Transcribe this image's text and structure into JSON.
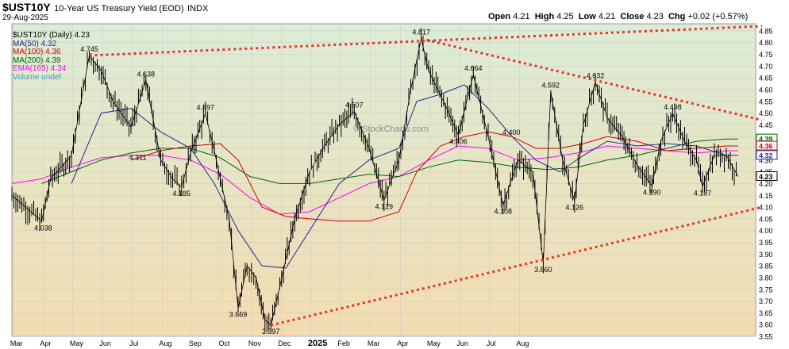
{
  "header": {
    "symbol": "$UST10Y",
    "description": "10-Year US Treasury Yield (EOD)",
    "exchange": "INDX",
    "date": "29-Aug-2025",
    "quote": {
      "open_label": "Open",
      "open": "4.21",
      "high_label": "High",
      "high": "4.25",
      "low_label": "Low",
      "low": "4.21",
      "close_label": "Close",
      "close": "4.23",
      "chg_label": "Chg",
      "chg": "+0.02 (+0.57%)"
    }
  },
  "legend": [
    {
      "text": "$UST10Y (Daily) 4.23",
      "color": "#000000"
    },
    {
      "text": "MA(50) 4.32",
      "color": "#1f2a8c"
    },
    {
      "text": "MA(100) 4.36",
      "color": "#cc0000"
    },
    {
      "text": "MA(200) 4.39",
      "color": "#006400"
    },
    {
      "text": "EMA(165) 4.34",
      "color": "#ff00ff"
    },
    {
      "text": "Volume undef",
      "color": "#40a0c0"
    }
  ],
  "watermark": "© StockCharts.com",
  "colors": {
    "ma50": "#1f2a8c",
    "ma100": "#cc0000",
    "ma200": "#006400",
    "ema165": "#ff00ff",
    "trendline": "#e8322a",
    "bg_top": "#dcecd6",
    "bg_bottom": "#f3dcb0"
  },
  "chart_data": {
    "type": "line",
    "x_months": [
      "Mar",
      "Apr",
      "May",
      "Jun",
      "Jul",
      "Aug",
      "Sep",
      "Oct",
      "Nov",
      "Dec",
      "2025",
      "Feb",
      "Mar",
      "Apr",
      "May",
      "Jun",
      "Jul",
      "Aug"
    ],
    "yticks": [
      "3.55",
      "3.60",
      "3.65",
      "3.70",
      "3.75",
      "3.80",
      "3.85",
      "3.90",
      "3.95",
      "4.00",
      "4.05",
      "4.10",
      "4.15",
      "4.20",
      "4.25",
      "4.30",
      "4.35",
      "4.40",
      "4.45",
      "4.50",
      "4.55",
      "4.60",
      "4.65",
      "4.70",
      "4.75",
      "4.80",
      "4.85"
    ],
    "ylim": [
      3.55,
      4.88
    ],
    "price_series": [
      [
        0,
        4.15
      ],
      [
        1,
        4.04
      ],
      [
        1.3,
        4.22
      ],
      [
        2,
        4.32
      ],
      [
        2.6,
        4.745
      ],
      [
        3,
        4.68
      ],
      [
        3.4,
        4.55
      ],
      [
        4,
        4.44
      ],
      [
        4.5,
        4.64
      ],
      [
        5,
        4.3
      ],
      [
        5.4,
        4.22
      ],
      [
        5.7,
        4.185
      ],
      [
        6,
        4.33
      ],
      [
        6.5,
        4.497
      ],
      [
        6.8,
        4.34
      ],
      [
        7,
        4.22
      ],
      [
        7.3,
        4.05
      ],
      [
        7.6,
        3.669
      ],
      [
        7.9,
        3.85
      ],
      [
        8.2,
        3.8
      ],
      [
        8.5,
        3.62
      ],
      [
        8.7,
        3.597
      ],
      [
        9,
        3.76
      ],
      [
        9.5,
        4.05
      ],
      [
        10,
        4.25
      ],
      [
        10.5,
        4.36
      ],
      [
        11,
        4.45
      ],
      [
        11.5,
        4.507
      ],
      [
        12,
        4.35
      ],
      [
        12.5,
        4.129
      ],
      [
        13,
        4.3
      ],
      [
        13.4,
        4.6
      ],
      [
        13.75,
        4.817
      ],
      [
        14,
        4.68
      ],
      [
        14.5,
        4.55
      ],
      [
        15,
        4.406
      ],
      [
        15.5,
        4.664
      ],
      [
        16,
        4.4
      ],
      [
        16.5,
        4.108
      ],
      [
        17,
        4.3
      ],
      [
        17.5,
        4.25
      ],
      [
        17.85,
        3.86
      ],
      [
        18.1,
        4.592
      ],
      [
        18.5,
        4.3
      ],
      [
        18.9,
        4.126
      ],
      [
        19.2,
        4.45
      ],
      [
        19.6,
        4.632
      ],
      [
        20,
        4.48
      ],
      [
        20.5,
        4.4
      ],
      [
        21,
        4.28
      ],
      [
        21.5,
        4.19
      ],
      [
        21.8,
        4.38
      ],
      [
        22.2,
        4.498
      ],
      [
        22.6,
        4.38
      ],
      [
        23,
        4.3
      ],
      [
        23.2,
        4.187
      ],
      [
        23.6,
        4.32
      ],
      [
        24,
        4.32
      ],
      [
        24.4,
        4.23
      ]
    ],
    "ma50": [
      [
        2,
        4.2
      ],
      [
        3,
        4.5
      ],
      [
        4,
        4.52
      ],
      [
        5,
        4.42
      ],
      [
        6,
        4.35
      ],
      [
        6.8,
        4.2
      ],
      [
        7.6,
        4.0
      ],
      [
        8.4,
        3.85
      ],
      [
        9.2,
        3.84
      ],
      [
        10,
        4.0
      ],
      [
        11,
        4.2
      ],
      [
        12,
        4.3
      ],
      [
        13,
        4.35
      ],
      [
        13.6,
        4.55
      ],
      [
        14.4,
        4.58
      ],
      [
        15.2,
        4.62
      ],
      [
        16,
        4.52
      ],
      [
        16.8,
        4.4
      ],
      [
        17.6,
        4.3
      ],
      [
        18.4,
        4.25
      ],
      [
        19.2,
        4.32
      ],
      [
        20,
        4.38
      ],
      [
        21,
        4.36
      ],
      [
        22,
        4.37
      ],
      [
        23,
        4.36
      ],
      [
        24,
        4.32
      ],
      [
        24.4,
        4.32
      ]
    ],
    "ma100": [
      [
        4,
        4.3
      ],
      [
        5,
        4.34
      ],
      [
        6,
        4.36
      ],
      [
        7,
        4.37
      ],
      [
        7.6,
        4.3
      ],
      [
        8.4,
        4.1
      ],
      [
        9.2,
        4.06
      ],
      [
        10,
        4.05
      ],
      [
        11,
        4.04
      ],
      [
        12,
        4.04
      ],
      [
        13,
        4.08
      ],
      [
        13.6,
        4.25
      ],
      [
        14.4,
        4.36
      ],
      [
        15.2,
        4.4
      ],
      [
        16,
        4.42
      ],
      [
        16.8,
        4.4
      ],
      [
        17.6,
        4.35
      ],
      [
        18.4,
        4.35
      ],
      [
        19.2,
        4.37
      ],
      [
        20,
        4.4
      ],
      [
        21,
        4.38
      ],
      [
        22,
        4.34
      ],
      [
        23,
        4.35
      ],
      [
        24,
        4.36
      ],
      [
        24.4,
        4.36
      ]
    ],
    "ma200": [
      [
        1,
        4.2
      ],
      [
        2,
        4.25
      ],
      [
        3,
        4.3
      ],
      [
        4,
        4.33
      ],
      [
        5,
        4.35
      ],
      [
        6,
        4.35
      ],
      [
        7,
        4.31
      ],
      [
        8,
        4.23
      ],
      [
        9,
        4.2
      ],
      [
        10,
        4.2
      ],
      [
        11,
        4.22
      ],
      [
        12,
        4.24
      ],
      [
        13,
        4.23
      ],
      [
        14,
        4.27
      ],
      [
        15,
        4.3
      ],
      [
        16,
        4.29
      ],
      [
        17,
        4.27
      ],
      [
        18,
        4.26
      ],
      [
        19,
        4.27
      ],
      [
        20,
        4.3
      ],
      [
        21,
        4.32
      ],
      [
        22,
        4.35
      ],
      [
        23,
        4.38
      ],
      [
        24,
        4.39
      ],
      [
        24.4,
        4.39
      ]
    ],
    "ema165": [
      [
        0,
        4.2
      ],
      [
        1,
        4.22
      ],
      [
        2,
        4.27
      ],
      [
        3,
        4.31
      ],
      [
        4,
        4.32
      ],
      [
        5,
        4.32
      ],
      [
        6,
        4.3
      ],
      [
        7,
        4.24
      ],
      [
        8,
        4.14
      ],
      [
        9,
        4.07
      ],
      [
        10,
        4.08
      ],
      [
        11,
        4.14
      ],
      [
        12,
        4.2
      ],
      [
        13,
        4.23
      ],
      [
        14,
        4.3
      ],
      [
        15,
        4.36
      ],
      [
        16,
        4.35
      ],
      [
        17,
        4.3
      ],
      [
        18,
        4.31
      ],
      [
        19,
        4.33
      ],
      [
        20,
        4.36
      ],
      [
        21,
        4.35
      ],
      [
        22,
        4.34
      ],
      [
        23,
        4.33
      ],
      [
        24,
        4.34
      ],
      [
        24.4,
        4.34
      ]
    ],
    "trendlines": [
      {
        "from": [
          2.6,
          4.745
        ],
        "to": [
          25.2,
          4.87
        ]
      },
      {
        "from": [
          13.75,
          4.817
        ],
        "to": [
          25.2,
          4.47
        ]
      },
      {
        "from": [
          8.7,
          3.597
        ],
        "to": [
          25.2,
          4.1
        ]
      }
    ],
    "annotations": [
      {
        "x": 1.05,
        "y": 4.038,
        "text": "4.038",
        "pos": "below"
      },
      {
        "x": 2.6,
        "y": 4.745,
        "text": "4.745",
        "pos": "above"
      },
      {
        "x": 4.5,
        "y": 4.638,
        "text": "4.638",
        "pos": "above"
      },
      {
        "x": 4.6,
        "y": 4.311,
        "text": "4.311",
        "pos": "left"
      },
      {
        "x": 5.7,
        "y": 4.185,
        "text": "4.185",
        "pos": "below"
      },
      {
        "x": 6.5,
        "y": 4.497,
        "text": "4.497",
        "pos": "above"
      },
      {
        "x": 7.6,
        "y": 3.669,
        "text": "3.669",
        "pos": "below"
      },
      {
        "x": 8.7,
        "y": 3.597,
        "text": "3.597",
        "pos": "below"
      },
      {
        "x": 11.5,
        "y": 4.507,
        "text": "4.507",
        "pos": "above"
      },
      {
        "x": 12.5,
        "y": 4.129,
        "text": "4.129",
        "pos": "below"
      },
      {
        "x": 13.75,
        "y": 4.817,
        "text": "4.817",
        "pos": "above"
      },
      {
        "x": 15.5,
        "y": 4.664,
        "text": "4.664",
        "pos": "above"
      },
      {
        "x": 15.0,
        "y": 4.406,
        "text": "4.406",
        "pos": "below"
      },
      {
        "x": 16.4,
        "y": 4.4,
        "text": "4.400",
        "pos": "right"
      },
      {
        "x": 16.5,
        "y": 4.108,
        "text": "4.108",
        "pos": "below"
      },
      {
        "x": 18.1,
        "y": 4.592,
        "text": "4.592",
        "pos": "above"
      },
      {
        "x": 17.85,
        "y": 3.86,
        "text": "3.860",
        "pos": "below"
      },
      {
        "x": 18.9,
        "y": 4.126,
        "text": "4.126",
        "pos": "below"
      },
      {
        "x": 19.6,
        "y": 4.632,
        "text": "4.632",
        "pos": "above"
      },
      {
        "x": 21.5,
        "y": 4.19,
        "text": "4.190",
        "pos": "below"
      },
      {
        "x": 22.2,
        "y": 4.498,
        "text": "4.498",
        "pos": "above"
      },
      {
        "x": 23.2,
        "y": 4.187,
        "text": "4.187",
        "pos": "below"
      }
    ],
    "right_badges": [
      {
        "y": 4.39,
        "text": "4.39",
        "color": "#006400"
      },
      {
        "y": 4.36,
        "text": "4.36",
        "color": "#cc0000"
      },
      {
        "y": 4.32,
        "text": "4.32",
        "color": "#1f2a8c"
      },
      {
        "y": 4.23,
        "text": "4.23",
        "color": "#000000"
      }
    ]
  }
}
